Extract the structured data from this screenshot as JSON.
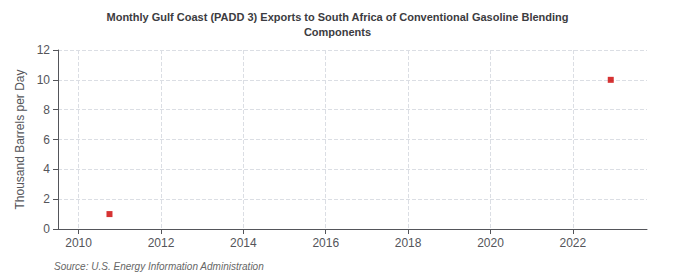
{
  "chart_data": {
    "type": "scatter",
    "title": "Monthly Gulf Coast (PADD 3) Exports to South Africa of Conventional Gasoline Blending\nComponents",
    "y_label": "Thousand Barrels per Day",
    "annotation": "Source: U.S. Energy Information Administration",
    "x": [
      2010.75,
      2022.92
    ],
    "values": [
      1.0,
      10.0
    ],
    "color": "#cc0000",
    "marker": "square",
    "xlim": [
      2009.5,
      2023.8
    ],
    "xticks": [
      2010,
      2012,
      2014,
      2016,
      2018,
      2020,
      2022
    ],
    "ylim": [
      0,
      12
    ],
    "yticks": [
      0,
      2,
      4,
      6,
      8,
      10,
      12
    ],
    "grid": true
  }
}
